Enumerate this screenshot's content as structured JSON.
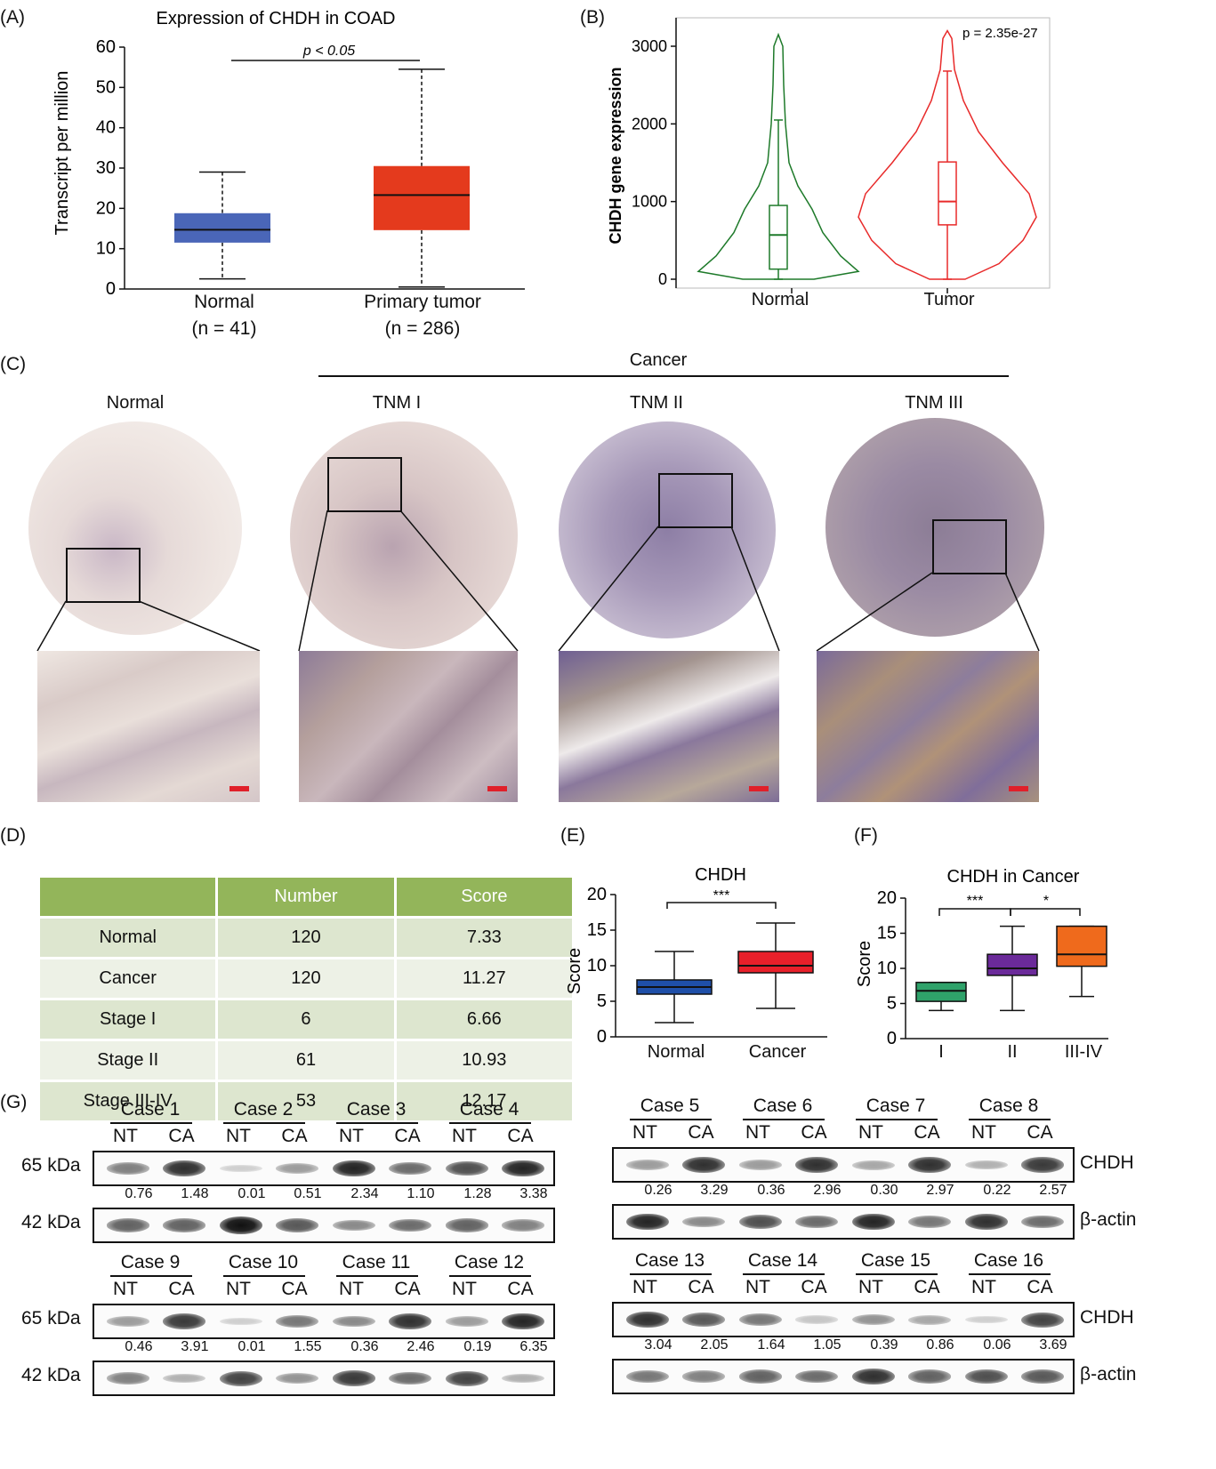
{
  "panels": {
    "a": {
      "label": "(A)",
      "title": "Expression of CHDH in COAD",
      "ylabel": "Transcript per million",
      "significance": "p < 0.05",
      "yticks": [
        "0",
        "10",
        "20",
        "30",
        "40",
        "50",
        "60"
      ],
      "groups": [
        {
          "name": "Normal",
          "n": "(n = 41)",
          "color": "#4a66b8"
        },
        {
          "name": "Primary tumor",
          "n": "(n = 286)",
          "color": "#e43a1d"
        }
      ]
    },
    "b": {
      "label": "(B)",
      "ylabel": "CHDH gene expression",
      "pvalue": "p = 2.35e-27",
      "yticks": [
        "0",
        "1000",
        "2000",
        "3000"
      ],
      "groups": [
        {
          "name": "Normal",
          "color": "#1e7a2a"
        },
        {
          "name": "Tumor",
          "color": "#e82a2a"
        }
      ]
    },
    "c": {
      "label": "(C)",
      "group_label": "Cancer",
      "columns": [
        "Normal",
        "TNM I",
        "TNM II",
        "TNM III"
      ]
    },
    "d": {
      "label": "(D)",
      "headers": [
        "",
        "Number",
        "Score"
      ],
      "rows": [
        [
          "Normal",
          "120",
          "7.33"
        ],
        [
          "Cancer",
          "120",
          "11.27"
        ],
        [
          "Stage I",
          "6",
          "6.66"
        ],
        [
          "Stage II",
          "61",
          "10.93"
        ],
        [
          "Stage III-IV",
          "53",
          "12.17"
        ]
      ]
    },
    "e": {
      "label": "(E)",
      "title": "CHDH",
      "ylabel": "Score",
      "significance": "***",
      "yticks": [
        "0",
        "5",
        "10",
        "15",
        "20"
      ],
      "groups": [
        {
          "name": "Normal",
          "color": "#1f4fa8"
        },
        {
          "name": "Cancer",
          "color": "#e8202a"
        }
      ]
    },
    "f": {
      "label": "(F)",
      "title": "CHDH in Cancer",
      "ylabel": "Score",
      "significance": [
        "***",
        "*"
      ],
      "yticks": [
        "0",
        "5",
        "10",
        "15",
        "20"
      ],
      "groups": [
        {
          "name": "I",
          "color": "#2fa26a"
        },
        {
          "name": "II",
          "color": "#6b2a9a"
        },
        {
          "name": "III-IV",
          "color": "#ef6a1c"
        }
      ]
    },
    "g": {
      "label": "(G)",
      "lane_labels": [
        "NT",
        "CA"
      ],
      "kda_top": "65 kDa",
      "kda_bottom": "42 kDa",
      "protein_top": "CHDH",
      "protein_bottom": "β-actin",
      "cases": [
        "Case 1",
        "Case 2",
        "Case 3",
        "Case 4",
        "Case 5",
        "Case 6",
        "Case 7",
        "Case 8",
        "Case 9",
        "Case 10",
        "Case 11",
        "Case 12",
        "Case 13",
        "Case 14",
        "Case 15",
        "Case 16"
      ],
      "ratios": [
        [
          "0.76",
          "1.48",
          "0.01",
          "0.51",
          "2.34",
          "1.10",
          "1.28",
          "3.38"
        ],
        [
          "0.26",
          "3.29",
          "0.36",
          "2.96",
          "0.30",
          "2.97",
          "0.22",
          "2.57"
        ],
        [
          "0.46",
          "3.91",
          "0.01",
          "1.55",
          "0.36",
          "2.46",
          "0.19",
          "6.35"
        ],
        [
          "3.04",
          "2.05",
          "1.64",
          "1.05",
          "0.39",
          "0.86",
          "0.06",
          "3.69"
        ]
      ]
    }
  },
  "chart_data": [
    {
      "type": "box",
      "title": "Expression of CHDH in COAD",
      "ylabel": "Transcript per million",
      "categories": [
        "Normal",
        "Primary tumor"
      ],
      "ylim": [
        0,
        60
      ],
      "boxes": [
        {
          "name": "Normal",
          "min": 2.5,
          "q1": 11.5,
          "median": 14.7,
          "q3": 18.8,
          "max": 29
        },
        {
          "name": "Primary tumor",
          "min": 0.5,
          "q1": 14.6,
          "median": 23.3,
          "q3": 30.5,
          "max": 54.5
        }
      ]
    },
    {
      "type": "violin",
      "ylabel": "CHDH gene expression",
      "categories": [
        "Normal",
        "Tumor"
      ],
      "ylim": [
        0,
        3200
      ],
      "boxes": [
        {
          "name": "Normal",
          "min": 0,
          "q1": 130,
          "median": 570,
          "q3": 950,
          "max": 2050,
          "violin_max": 3150
        },
        {
          "name": "Tumor",
          "min": 0,
          "q1": 700,
          "median": 1000,
          "q3": 1510,
          "max": 2680,
          "violin_max": 3200
        }
      ]
    },
    {
      "type": "box",
      "title": "CHDH",
      "ylabel": "Score",
      "categories": [
        "Normal",
        "Cancer"
      ],
      "ylim": [
        0,
        20
      ],
      "boxes": [
        {
          "name": "Normal",
          "min": 2,
          "q1": 6,
          "median": 7,
          "q3": 8,
          "max": 12
        },
        {
          "name": "Cancer",
          "min": 4,
          "q1": 9,
          "median": 10,
          "q3": 12,
          "max": 16
        }
      ]
    },
    {
      "type": "box",
      "title": "CHDH in Cancer",
      "ylabel": "Score",
      "categories": [
        "I",
        "II",
        "III-IV"
      ],
      "ylim": [
        0,
        20
      ],
      "boxes": [
        {
          "name": "I",
          "min": 4,
          "q1": 5.3,
          "median": 6.8,
          "q3": 8,
          "max": 8
        },
        {
          "name": "II",
          "min": 4,
          "q1": 9,
          "median": 10,
          "q3": 12,
          "max": 16
        },
        {
          "name": "III-IV",
          "min": 6,
          "q1": 10.3,
          "median": 12,
          "q3": 16,
          "max": 16
        }
      ]
    }
  ]
}
